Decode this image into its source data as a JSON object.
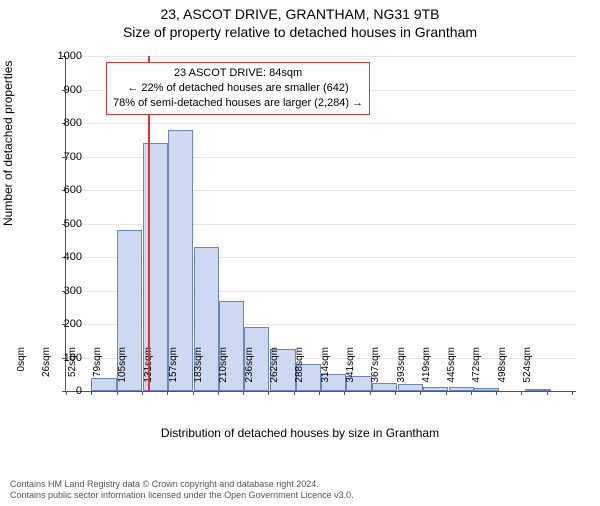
{
  "header": {
    "address": "23, ASCOT DRIVE, GRANTHAM, NG31 9TB",
    "subtitle": "Size of property relative to detached houses in Grantham"
  },
  "chart": {
    "type": "histogram",
    "ylabel": "Number of detached properties",
    "xlabel": "Distribution of detached houses by size in Grantham",
    "ylim": [
      0,
      1000
    ],
    "ytick_step": 100,
    "xlim_sqm": [
      0,
      524
    ],
    "xtick_step_sqm": 26,
    "xtick_unit": "sqm",
    "background_color": "#ffffff",
    "grid_color": "#e5e5e5",
    "axis_color": "#555555",
    "bar_fill": "#cdd9f0",
    "bar_border": "#6a84c2",
    "marker_color": "#d33333",
    "marker_sqm": 84,
    "bins_sqm_start": [
      0,
      26,
      52,
      79,
      105,
      131,
      157,
      183,
      210,
      236,
      262,
      288,
      314,
      341,
      367,
      393,
      419,
      445,
      472,
      498
    ],
    "bin_width_sqm": 26,
    "values": [
      0,
      40,
      480,
      740,
      780,
      430,
      270,
      190,
      125,
      80,
      50,
      45,
      25,
      20,
      12,
      12,
      8,
      0,
      6,
      0
    ],
    "x_tick_labels": [
      "0sqm",
      "26sqm",
      "52sqm",
      "79sqm",
      "105sqm",
      "131sqm",
      "157sqm",
      "183sqm",
      "210sqm",
      "236sqm",
      "262sqm",
      "288sqm",
      "314sqm",
      "341sqm",
      "367sqm",
      "393sqm",
      "419sqm",
      "445sqm",
      "472sqm",
      "498sqm",
      "524sqm"
    ],
    "y_tick_labels": [
      "0",
      "100",
      "200",
      "300",
      "400",
      "500",
      "600",
      "700",
      "800",
      "900",
      "1000"
    ]
  },
  "annotation": {
    "line1": "23 ASCOT DRIVE: 84sqm",
    "line2": "← 22% of detached houses are smaller (642)",
    "line3": "78% of semi-detached houses are larger (2,284) →"
  },
  "footer": {
    "line1": "Contains HM Land Registry data © Crown copyright and database right 2024.",
    "line2": "Contains public sector information licensed under the Open Government Licence v3.0."
  }
}
